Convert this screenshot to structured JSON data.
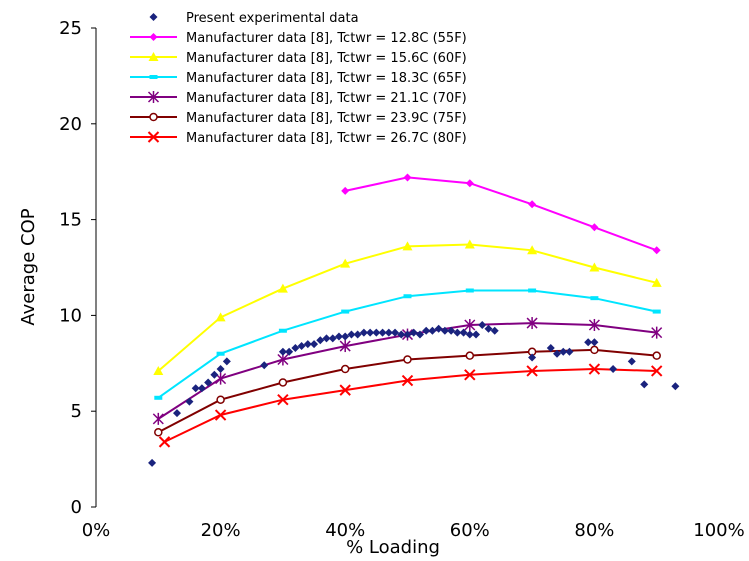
{
  "chart_data": {
    "type": "scatter",
    "title": "",
    "xlabel": "% Loading",
    "ylabel": "Average COP",
    "xlim": [
      0,
      1
    ],
    "ylim": [
      0,
      25
    ],
    "xticks": [
      "0%",
      "20%",
      "40%",
      "60%",
      "80%",
      "100%"
    ],
    "yticks": [
      "0",
      "5",
      "10",
      "15",
      "20",
      "25"
    ],
    "grid": false,
    "legend_position": "top-center",
    "series": [
      {
        "name": "Present experimental data",
        "kind": "scatter",
        "color": "#1a237e",
        "marker": "diamond",
        "points": [
          [
            0.09,
            2.3
          ],
          [
            0.13,
            4.9
          ],
          [
            0.15,
            5.5
          ],
          [
            0.16,
            6.2
          ],
          [
            0.17,
            6.2
          ],
          [
            0.18,
            6.5
          ],
          [
            0.19,
            6.9
          ],
          [
            0.2,
            7.2
          ],
          [
            0.21,
            7.6
          ],
          [
            0.27,
            7.4
          ],
          [
            0.3,
            8.1
          ],
          [
            0.31,
            8.1
          ],
          [
            0.32,
            8.3
          ],
          [
            0.33,
            8.4
          ],
          [
            0.34,
            8.5
          ],
          [
            0.35,
            8.5
          ],
          [
            0.36,
            8.7
          ],
          [
            0.37,
            8.8
          ],
          [
            0.38,
            8.8
          ],
          [
            0.39,
            8.9
          ],
          [
            0.4,
            8.9
          ],
          [
            0.41,
            9.0
          ],
          [
            0.42,
            9.0
          ],
          [
            0.43,
            9.1
          ],
          [
            0.44,
            9.1
          ],
          [
            0.45,
            9.1
          ],
          [
            0.46,
            9.1
          ],
          [
            0.47,
            9.1
          ],
          [
            0.48,
            9.1
          ],
          [
            0.49,
            9.0
          ],
          [
            0.5,
            9.0
          ],
          [
            0.51,
            9.1
          ],
          [
            0.52,
            9.0
          ],
          [
            0.53,
            9.2
          ],
          [
            0.54,
            9.2
          ],
          [
            0.55,
            9.3
          ],
          [
            0.56,
            9.2
          ],
          [
            0.57,
            9.2
          ],
          [
            0.58,
            9.1
          ],
          [
            0.59,
            9.1
          ],
          [
            0.6,
            9.0
          ],
          [
            0.61,
            9.0
          ],
          [
            0.62,
            9.5
          ],
          [
            0.63,
            9.3
          ],
          [
            0.64,
            9.2
          ],
          [
            0.7,
            7.8
          ],
          [
            0.73,
            8.3
          ],
          [
            0.74,
            8.0
          ],
          [
            0.75,
            8.1
          ],
          [
            0.76,
            8.1
          ],
          [
            0.79,
            8.6
          ],
          [
            0.8,
            8.6
          ],
          [
            0.83,
            7.2
          ],
          [
            0.86,
            7.6
          ],
          [
            0.88,
            6.4
          ],
          [
            0.93,
            6.3
          ]
        ]
      },
      {
        "name": "Manufacturer data [8], Tctwr = 12.8C (55F)",
        "kind": "line",
        "color": "#ff00ff",
        "marker": "diamond",
        "points": [
          [
            0.4,
            16.5
          ],
          [
            0.5,
            17.2
          ],
          [
            0.6,
            16.9
          ],
          [
            0.7,
            15.8
          ],
          [
            0.8,
            14.6
          ],
          [
            0.9,
            13.4
          ]
        ]
      },
      {
        "name": "Manufacturer data [8], Tctwr = 15.6C (60F)",
        "kind": "line",
        "color": "#ffff00",
        "marker": "triangle",
        "points": [
          [
            0.1,
            7.1
          ],
          [
            0.2,
            9.9
          ],
          [
            0.3,
            11.4
          ],
          [
            0.4,
            12.7
          ],
          [
            0.5,
            13.6
          ],
          [
            0.6,
            13.7
          ],
          [
            0.7,
            13.4
          ],
          [
            0.8,
            12.5
          ],
          [
            0.9,
            11.7
          ]
        ]
      },
      {
        "name": "Manufacturer data [8], Tctwr = 18.3C (65F)",
        "kind": "line",
        "color": "#00e5ff",
        "marker": "square",
        "points": [
          [
            0.1,
            5.7
          ],
          [
            0.2,
            8.0
          ],
          [
            0.3,
            9.2
          ],
          [
            0.4,
            10.2
          ],
          [
            0.5,
            11.0
          ],
          [
            0.6,
            11.3
          ],
          [
            0.7,
            11.3
          ],
          [
            0.8,
            10.9
          ],
          [
            0.9,
            10.2
          ]
        ]
      },
      {
        "name": "Manufacturer data [8], Tctwr = 21.1C (70F)",
        "kind": "line",
        "color": "#800080",
        "marker": "asterisk",
        "points": [
          [
            0.1,
            4.6
          ],
          [
            0.2,
            6.7
          ],
          [
            0.3,
            7.7
          ],
          [
            0.4,
            8.4
          ],
          [
            0.5,
            9.0
          ],
          [
            0.6,
            9.5
          ],
          [
            0.7,
            9.6
          ],
          [
            0.8,
            9.5
          ],
          [
            0.9,
            9.1
          ]
        ]
      },
      {
        "name": "Manufacturer data [8], Tctwr = 23.9C (75F)",
        "kind": "line",
        "color": "#800000",
        "marker": "circle",
        "points": [
          [
            0.1,
            3.9
          ],
          [
            0.2,
            5.6
          ],
          [
            0.3,
            6.5
          ],
          [
            0.4,
            7.2
          ],
          [
            0.5,
            7.7
          ],
          [
            0.6,
            7.9
          ],
          [
            0.7,
            8.1
          ],
          [
            0.8,
            8.2
          ],
          [
            0.9,
            7.9
          ]
        ]
      },
      {
        "name": "Manufacturer data [8], Tctwr = 26.7C (80F)",
        "kind": "line",
        "color": "#ff0000",
        "marker": "x",
        "points": [
          [
            0.11,
            3.4
          ],
          [
            0.2,
            4.8
          ],
          [
            0.3,
            5.6
          ],
          [
            0.4,
            6.1
          ],
          [
            0.5,
            6.6
          ],
          [
            0.6,
            6.9
          ],
          [
            0.7,
            7.1
          ],
          [
            0.8,
            7.2
          ],
          [
            0.9,
            7.1
          ]
        ]
      }
    ]
  }
}
